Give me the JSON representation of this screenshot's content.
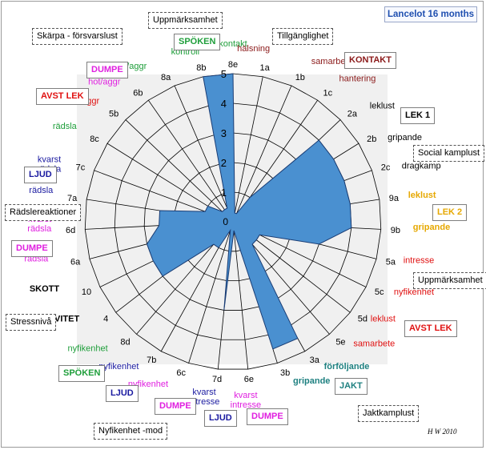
{
  "title": "Lancelot 16 months",
  "signature": "H W 2010",
  "colors": {
    "fill": "#4a90d0",
    "stroke": "#1a3d75",
    "plot_bg": "#f0f0f0",
    "grid": "#000000"
  },
  "chart_data": {
    "type": "radar",
    "scale": {
      "min": 0,
      "max": 5,
      "ticks": [
        "1",
        "2",
        "3",
        "4",
        "5"
      ],
      "zero_label": "0"
    },
    "categories": [
      {
        "code": "8e",
        "label": "kontakt",
        "color": "#1e9e3a"
      },
      {
        "code": "1a",
        "label": "hälsning",
        "color": "#8b1a1a"
      },
      {
        "code": "1b",
        "label": "samarbete",
        "color": "#8b1a1a"
      },
      {
        "code": "1c",
        "label": "hantering",
        "color": "#8b1a1a"
      },
      {
        "code": "2a",
        "label": "leklust",
        "color": "#000000"
      },
      {
        "code": "2b",
        "label": "gripande",
        "color": "#000000"
      },
      {
        "code": "2c",
        "label": "dragkamp",
        "color": "#000000"
      },
      {
        "code": "9a",
        "label": "leklust",
        "color": "#e6a800"
      },
      {
        "code": "9b",
        "label": "gripande",
        "color": "#e6a800"
      },
      {
        "code": "5a",
        "label": "intresse",
        "color": "#e01010"
      },
      {
        "code": "5c",
        "label": "nyfikenhet",
        "color": "#e01010"
      },
      {
        "code": "5d",
        "label": "leklust",
        "color": "#e01010"
      },
      {
        "code": "5e",
        "label": "samarbete",
        "color": "#e01010"
      },
      {
        "code": "3a",
        "label": "förföljande",
        "color": "#1e8080"
      },
      {
        "code": "3b",
        "label": "gripande",
        "color": "#1e8080"
      },
      {
        "code": "6e",
        "label": "kvarst intresse",
        "color": "#e020e0"
      },
      {
        "code": "7d",
        "label": "kvarst intresse",
        "color": "#1a1aa0"
      },
      {
        "code": "6c",
        "label": "nyfikenhet",
        "color": "#e020e0"
      },
      {
        "code": "7b",
        "label": "nyfikenhet",
        "color": "#1a1aa0"
      },
      {
        "code": "8d",
        "label": "nyfikenhet",
        "color": "#1e9e3a"
      },
      {
        "code": "4",
        "label": "AKTIVITET",
        "color": "#000000"
      },
      {
        "code": "10",
        "label": "SKOTT",
        "color": "#000000"
      },
      {
        "code": "6a",
        "label": "rädsla",
        "color": "#e020e0"
      },
      {
        "code": "6d",
        "label": "kvarst rädsla",
        "color": "#e020e0"
      },
      {
        "code": "7a",
        "label": "rädsla",
        "color": "#1a1aa0"
      },
      {
        "code": "7c",
        "label": "kvarst rädsla",
        "color": "#1a1aa0"
      },
      {
        "code": "8c",
        "label": "rädsla",
        "color": "#1e9e3a"
      },
      {
        "code": "5b",
        "label": "hot/aggr",
        "color": "#e01010"
      },
      {
        "code": "6b",
        "label": "hot/aggr",
        "color": "#e020e0"
      },
      {
        "code": "8a",
        "label": "hot/aggr",
        "color": "#1e9e3a"
      },
      {
        "code": "8b",
        "label": "kontroll",
        "color": "#1e9e3a"
      }
    ],
    "values": [
      5,
      0.3,
      0.3,
      1,
      4,
      4,
      4,
      4,
      4,
      3,
      1,
      1,
      1,
      4.5,
      4.5,
      0.3,
      3,
      0.3,
      1,
      1,
      3,
      3,
      3,
      2.5,
      2.5,
      1,
      1,
      0.5,
      0.5,
      0.5,
      5
    ]
  },
  "groups": [
    {
      "id": "uppmarksamhet-top",
      "label": "Uppmärksamhet",
      "style": "dashed",
      "color": "#000000"
    },
    {
      "id": "skarpa",
      "label": "Skärpa - försvarslust",
      "style": "dashed",
      "color": "#000000"
    },
    {
      "id": "tillganglighet",
      "label": "Tillgänglighet",
      "style": "dashed",
      "color": "#000000"
    },
    {
      "id": "spoken-top",
      "label": "SPÖKEN",
      "style": "solid",
      "color": "#1e9e3a"
    },
    {
      "id": "kontakt",
      "label": "KONTAKT",
      "style": "solid",
      "color": "#8b1a1a"
    },
    {
      "id": "dumpe-top",
      "label": "DUMPE",
      "style": "solid",
      "color": "#e020e0"
    },
    {
      "id": "avst-lek-left",
      "label": "AVST LEK",
      "style": "solid",
      "color": "#e01010"
    },
    {
      "id": "lek1",
      "label": "LEK 1",
      "style": "solid",
      "color": "#000000"
    },
    {
      "id": "social-kamplust",
      "label": "Social kamplust",
      "style": "dashed",
      "color": "#000000"
    },
    {
      "id": "ljud-left",
      "label": "LJUD",
      "style": "solid",
      "color": "#1a1aa0"
    },
    {
      "id": "lek2",
      "label": "LEK 2",
      "style": "solid",
      "color": "#e6a800"
    },
    {
      "id": "radslereaktioner",
      "label": "Rädslereaktioner",
      "style": "dashed",
      "color": "#000000"
    },
    {
      "id": "dumpe-left",
      "label": "DUMPE",
      "style": "solid",
      "color": "#e020e0"
    },
    {
      "id": "uppmarksamhet-right",
      "label": "Uppmärksamhet",
      "style": "dashed",
      "color": "#000000"
    },
    {
      "id": "stressniva",
      "label": "Stressnivå",
      "style": "dashed",
      "color": "#000000"
    },
    {
      "id": "avst-lek-right",
      "label": "AVST  LEK",
      "style": "solid",
      "color": "#e01010"
    },
    {
      "id": "spoken-bottom",
      "label": "SPÖKEN",
      "style": "solid",
      "color": "#1e9e3a"
    },
    {
      "id": "jakt",
      "label": "JAKT",
      "style": "solid",
      "color": "#1e8080"
    },
    {
      "id": "ljud-bottom-left",
      "label": "LJUD",
      "style": "solid",
      "color": "#1a1aa0"
    },
    {
      "id": "dumpe-bottom-left",
      "label": "DUMPE",
      "style": "solid",
      "color": "#e020e0"
    },
    {
      "id": "ljud-bottom",
      "label": "LJUD",
      "style": "solid",
      "color": "#1a1aa0"
    },
    {
      "id": "dumpe-bottom",
      "label": "DUMPE",
      "style": "solid",
      "color": "#e020e0"
    },
    {
      "id": "jaktkamplust",
      "label": "Jaktkamplust",
      "style": "dashed",
      "color": "#000000"
    },
    {
      "id": "nyfikenhet-mod",
      "label": "Nyfikenhet -mod",
      "style": "dashed",
      "color": "#000000"
    }
  ]
}
